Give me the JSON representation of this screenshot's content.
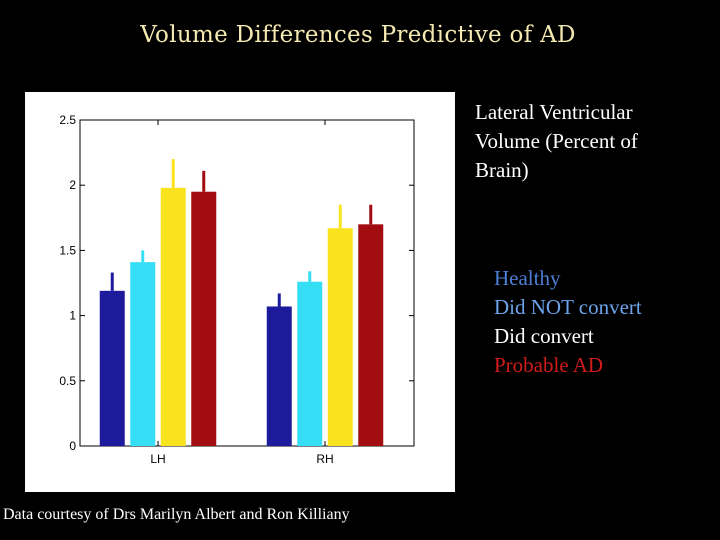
{
  "title": "Volume Differences Predictive of AD",
  "side_label": [
    "Lateral Ventricular",
    "Volume (Percent of",
    "Brain)"
  ],
  "legend": [
    {
      "label": "Healthy",
      "color": "#4f7fd8"
    },
    {
      "label": "Did NOT convert",
      "color": "#6ca3ea"
    },
    {
      "label": "Did convert",
      "color": "#ffffff"
    },
    {
      "label": "Probable AD",
      "color": "#d21a1a"
    }
  ],
  "credit": "Data courtesy of Drs Marilyn Albert and Ron Killiany",
  "chart_data": {
    "type": "bar",
    "categories": [
      "LH",
      "RH"
    ],
    "series": [
      {
        "name": "Healthy",
        "color": "#1e1a9c",
        "values": [
          1.19,
          1.07
        ],
        "errors": [
          0.14,
          0.1
        ]
      },
      {
        "name": "Did NOT convert",
        "color": "#36def5",
        "values": [
          1.41,
          1.26
        ],
        "errors": [
          0.09,
          0.08
        ]
      },
      {
        "name": "Did convert",
        "color": "#f9e31e",
        "values": [
          1.98,
          1.67
        ],
        "errors": [
          0.22,
          0.18
        ]
      },
      {
        "name": "Probable AD",
        "color": "#a10d10",
        "values": [
          1.95,
          1.7
        ],
        "errors": [
          0.16,
          0.15
        ]
      }
    ],
    "ylim": [
      0,
      2.5
    ],
    "yticks": [
      0,
      0.5,
      1,
      1.5,
      2,
      2.5
    ],
    "ytick_labels": [
      "0",
      "0.5",
      "1",
      "1.5",
      "2",
      "2.5"
    ],
    "xlabel": "",
    "ylabel": "",
    "grid": false
  }
}
